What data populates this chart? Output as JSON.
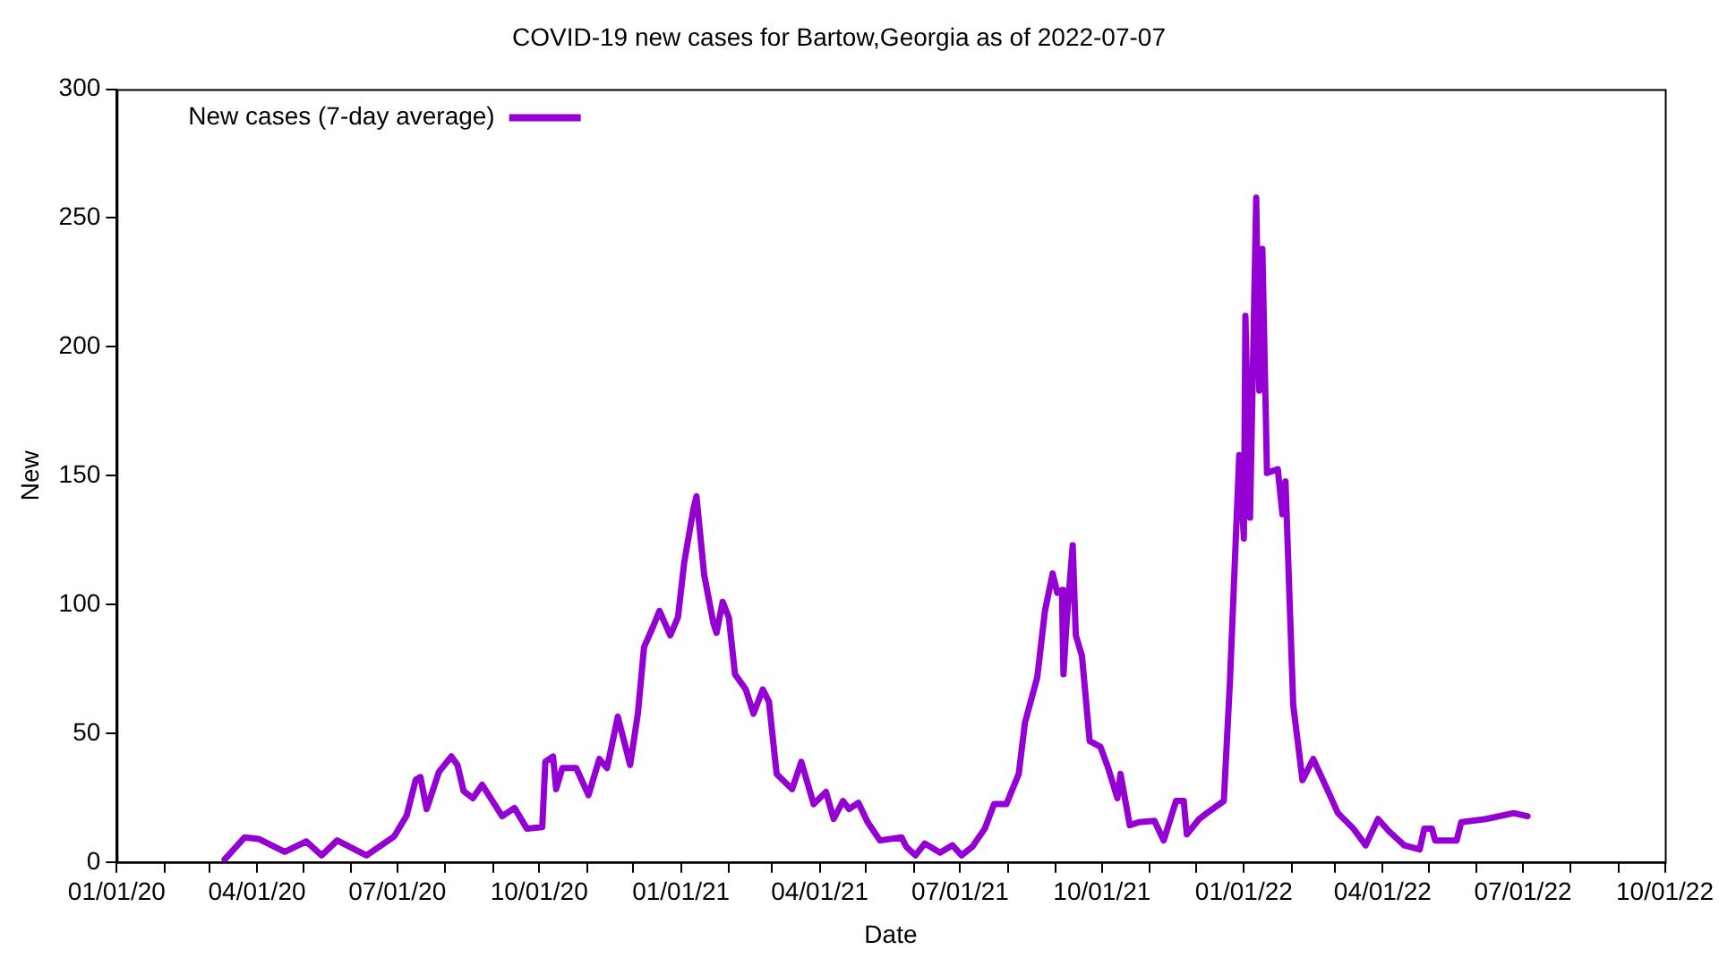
{
  "chart_data": {
    "type": "line",
    "title": "COVID-19 new cases for Bartow,Georgia as of 2022-07-07",
    "xlabel": "Date",
    "ylabel": "New",
    "xlim": [
      "2020-01-01",
      "2022-10-01"
    ],
    "xticks": [
      {
        "value": "2020-01-01",
        "label": "01/01/20"
      },
      {
        "value": "2020-02-01",
        "label": null
      },
      {
        "value": "2020-03-01",
        "label": null
      },
      {
        "value": "2020-04-01",
        "label": "04/01/20"
      },
      {
        "value": "2020-05-01",
        "label": null
      },
      {
        "value": "2020-06-01",
        "label": null
      },
      {
        "value": "2020-07-01",
        "label": "07/01/20"
      },
      {
        "value": "2020-08-01",
        "label": null
      },
      {
        "value": "2020-09-01",
        "label": null
      },
      {
        "value": "2020-10-01",
        "label": "10/01/20"
      },
      {
        "value": "2020-11-01",
        "label": null
      },
      {
        "value": "2020-12-01",
        "label": null
      },
      {
        "value": "2021-01-01",
        "label": "01/01/21"
      },
      {
        "value": "2021-02-01",
        "label": null
      },
      {
        "value": "2021-03-01",
        "label": null
      },
      {
        "value": "2021-04-01",
        "label": "04/01/21"
      },
      {
        "value": "2021-05-01",
        "label": null
      },
      {
        "value": "2021-06-01",
        "label": null
      },
      {
        "value": "2021-07-01",
        "label": "07/01/21"
      },
      {
        "value": "2021-08-01",
        "label": null
      },
      {
        "value": "2021-09-01",
        "label": null
      },
      {
        "value": "2021-10-01",
        "label": "10/01/21"
      },
      {
        "value": "2021-11-01",
        "label": null
      },
      {
        "value": "2021-12-01",
        "label": null
      },
      {
        "value": "2022-01-01",
        "label": "01/01/22"
      },
      {
        "value": "2022-02-01",
        "label": null
      },
      {
        "value": "2022-03-01",
        "label": null
      },
      {
        "value": "2022-04-01",
        "label": "04/01/22"
      },
      {
        "value": "2022-05-01",
        "label": null
      },
      {
        "value": "2022-06-01",
        "label": null
      },
      {
        "value": "2022-07-01",
        "label": "07/01/22"
      },
      {
        "value": "2022-08-01",
        "label": null
      },
      {
        "value": "2022-09-01",
        "label": null
      },
      {
        "value": "2022-10-01",
        "label": "10/01/22"
      }
    ],
    "ylim": [
      0,
      300
    ],
    "yticks": [
      0,
      50,
      100,
      150,
      200,
      250,
      300
    ],
    "legend": "top left",
    "marker": "none",
    "line_style": "solid",
    "series": [
      {
        "name": "New cases (7-day average)",
        "color": "#9400d3",
        "x": [
          "2020-03-11",
          "2020-03-24",
          "2020-04-02",
          "2020-04-19",
          "2020-05-03",
          "2020-05-13",
          "2020-05-23",
          "2020-06-11",
          "2020-06-29",
          "2020-07-07",
          "2020-07-13",
          "2020-07-16",
          "2020-07-20",
          "2020-07-28",
          "2020-08-05",
          "2020-08-09",
          "2020-08-13",
          "2020-08-19",
          "2020-08-25",
          "2020-09-07",
          "2020-09-15",
          "2020-09-23",
          "2020-10-03",
          "2020-10-05",
          "2020-10-10",
          "2020-10-12",
          "2020-10-16",
          "2020-10-25",
          "2020-11-02",
          "2020-11-09",
          "2020-11-14",
          "2020-11-21",
          "2020-11-29",
          "2020-12-04",
          "2020-12-08",
          "2020-12-14",
          "2020-12-18",
          "2020-12-25",
          "2020-12-30",
          "2021-01-03",
          "2021-01-09",
          "2021-01-11",
          "2021-01-16",
          "2021-01-22",
          "2021-01-24",
          "2021-01-28",
          "2021-02-01",
          "2021-02-05",
          "2021-02-12",
          "2021-02-17",
          "2021-02-23",
          "2021-02-27",
          "2021-03-04",
          "2021-03-14",
          "2021-03-20",
          "2021-03-28",
          "2021-04-05",
          "2021-04-10",
          "2021-04-16",
          "2021-04-20",
          "2021-04-26",
          "2021-05-02",
          "2021-05-10",
          "2021-05-24",
          "2021-05-27",
          "2021-06-02",
          "2021-06-08",
          "2021-06-18",
          "2021-06-26",
          "2021-07-02",
          "2021-07-09",
          "2021-07-17",
          "2021-07-23",
          "2021-07-31",
          "2021-08-08",
          "2021-08-12",
          "2021-08-20",
          "2021-08-25",
          "2021-08-30",
          "2021-09-02",
          "2021-09-05",
          "2021-09-06",
          "2021-09-08",
          "2021-09-12",
          "2021-09-14",
          "2021-09-18",
          "2021-09-23",
          "2021-09-30",
          "2021-10-05",
          "2021-10-11",
          "2021-10-13",
          "2021-10-19",
          "2021-10-25",
          "2021-11-04",
          "2021-11-10",
          "2021-11-18",
          "2021-11-23",
          "2021-11-25",
          "2021-12-03",
          "2021-12-08",
          "2021-12-19",
          "2021-12-23",
          "2021-12-29",
          "2022-01-01",
          "2022-01-02",
          "2022-01-05",
          "2022-01-09",
          "2022-01-11",
          "2022-01-13",
          "2022-01-16",
          "2022-01-23",
          "2022-01-26",
          "2022-01-28",
          "2022-02-02",
          "2022-02-08",
          "2022-02-15",
          "2022-02-25",
          "2022-03-03",
          "2022-03-13",
          "2022-03-21",
          "2022-03-29",
          "2022-04-05",
          "2022-04-15",
          "2022-04-25",
          "2022-04-28",
          "2022-05-03",
          "2022-05-05",
          "2022-05-19",
          "2022-05-22",
          "2022-06-07",
          "2022-06-25",
          "2022-07-04"
        ],
        "values": [
          1,
          9.6,
          9,
          4,
          8,
          2.6,
          8.4,
          2.6,
          10,
          18,
          32,
          33,
          20.6,
          35,
          41,
          37.7,
          27.6,
          24.8,
          30,
          17.8,
          21,
          13,
          13.6,
          39,
          41,
          28.3,
          36.5,
          36.5,
          26,
          40,
          36.5,
          56.4,
          37.7,
          57.6,
          83.4,
          91.6,
          97.5,
          88,
          95,
          116,
          137,
          142,
          111.5,
          92.7,
          89,
          101,
          95,
          72.9,
          67,
          57.6,
          67,
          62.3,
          34.2,
          28.3,
          38.9,
          22.5,
          27.2,
          16.7,
          23.7,
          20.6,
          23,
          15.5,
          8.4,
          9.6,
          6,
          2.6,
          7.2,
          3.7,
          6.5,
          2.6,
          6,
          13,
          22.5,
          22.5,
          34.2,
          54,
          71.7,
          97.5,
          112,
          104.5,
          105.6,
          72.9,
          92.7,
          123,
          88,
          80,
          47,
          44.7,
          36.5,
          24.8,
          34.2,
          14.3,
          15.5,
          16,
          8.4,
          23.7,
          23.7,
          10.8,
          16.7,
          19,
          23.7,
          70.5,
          158,
          125.6,
          212,
          133.7,
          257.9,
          183,
          238,
          151,
          152.5,
          135,
          147.7,
          61,
          31.8,
          40,
          27,
          19,
          13,
          6.5,
          16.7,
          12,
          6.5,
          4.9,
          13,
          13,
          8.4,
          8.4,
          15.5,
          16.7,
          19,
          17.8
        ]
      }
    ]
  }
}
